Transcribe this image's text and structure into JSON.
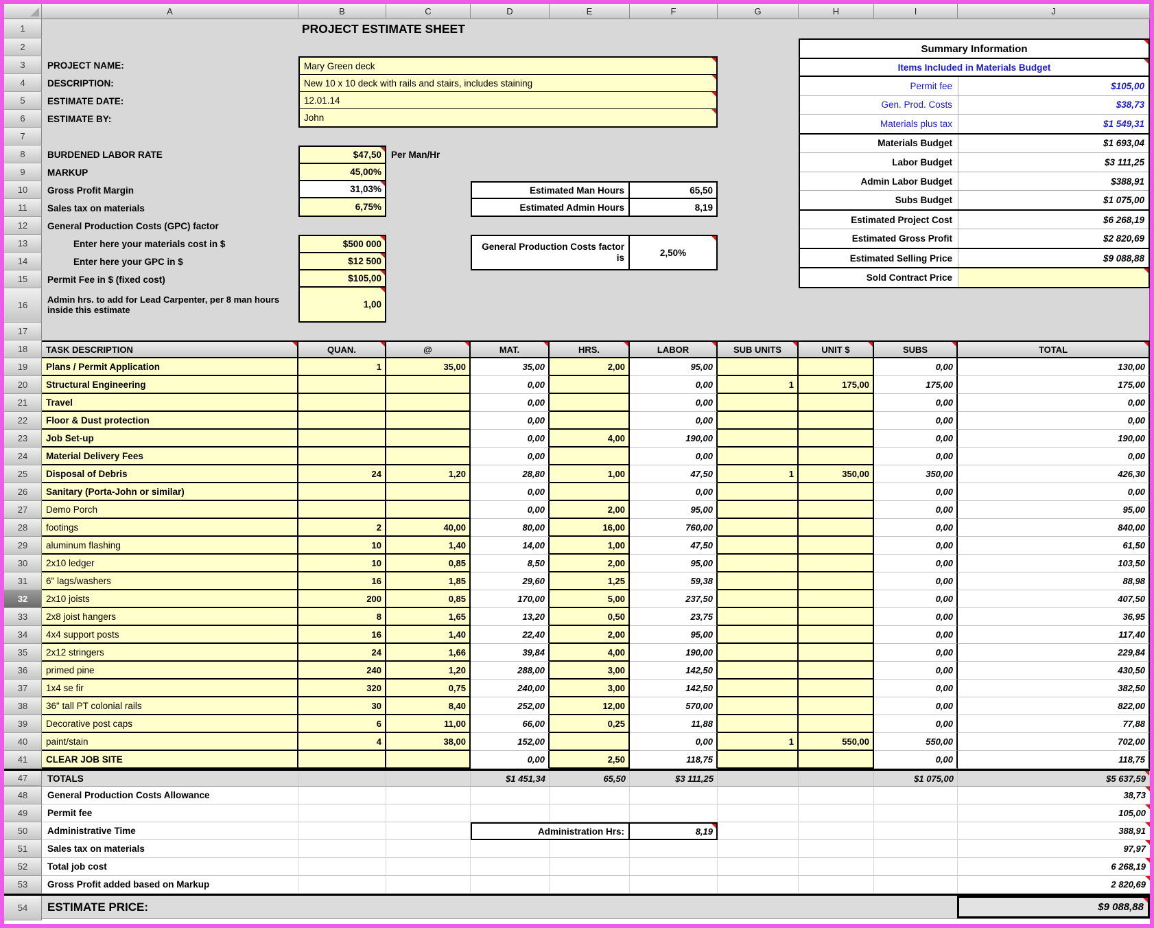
{
  "sheet": {
    "title": "PROJECT ESTIMATE SHEET"
  },
  "grid": {
    "column_letters": [
      "A",
      "B",
      "C",
      "D",
      "E",
      "F",
      "G",
      "H",
      "I",
      "J"
    ],
    "selected_row": "32",
    "top_rows": [
      {
        "num": "1"
      },
      {
        "num": "2"
      },
      {
        "num": "3",
        "label": "PROJECT NAME:"
      },
      {
        "num": "4",
        "label": "DESCRIPTION:"
      },
      {
        "num": "5",
        "label": "ESTIMATE DATE:"
      },
      {
        "num": "6",
        "label": "ESTIMATE BY:"
      },
      {
        "num": "7"
      },
      {
        "num": "8",
        "label": "BURDENED LABOR RATE"
      },
      {
        "num": "9",
        "label": "MARKUP"
      },
      {
        "num": "10",
        "label": "Gross Profit Margin"
      },
      {
        "num": "11",
        "label": "Sales tax on materials"
      },
      {
        "num": "12",
        "label": "General Production Costs (GPC) factor"
      },
      {
        "num": "13",
        "label": "Enter here your materials cost in $",
        "indent": true
      },
      {
        "num": "14",
        "label": "Enter here your GPC in $",
        "indent": true
      },
      {
        "num": "15",
        "label": "Permit Fee in $ (fixed cost)"
      },
      {
        "num": "16",
        "label": "Admin hrs. to add for Lead Carpenter, per 8 man hours inside this estimate",
        "tall": true
      },
      {
        "num": "17"
      }
    ]
  },
  "form_values": [
    "Mary Green deck",
    "New 10 x 10 deck with rails and stairs, includes staining",
    "12.01.14",
    "John"
  ],
  "rates": {
    "per_man_hr": "Per Man/Hr"
  },
  "rate_boxes": {
    "group1": [
      {
        "value": "$47,50",
        "corner": true
      },
      {
        "value": "45,00%"
      },
      {
        "value": "31,03%",
        "white": true,
        "corner": true
      },
      {
        "value": "6,75%"
      }
    ],
    "group2": [
      {
        "value": "$500 000",
        "corner": true
      },
      {
        "value": "$12 500",
        "corner": true
      },
      {
        "value": "$105,00",
        "corner": true
      },
      {
        "value": "1,00",
        "tall": true,
        "corner": true
      }
    ]
  },
  "hours_box": {
    "rows": [
      {
        "label": "Estimated Man Hours",
        "value": "65,50"
      },
      {
        "label": "Estimated Admin Hours",
        "value": "8,19"
      }
    ]
  },
  "gpc_box": {
    "label": "General Production Costs factor is",
    "value": "2,50%"
  },
  "summary": {
    "title": "Summary Information",
    "subtitle": "Items Included in Materials Budget",
    "rows": [
      {
        "label": "Permit fee",
        "value": "$105,00",
        "blue": true
      },
      {
        "label": "Gen. Prod. Costs",
        "value": "$38,73",
        "blue": true
      },
      {
        "label": "Materials plus tax",
        "value": "$1 549,31",
        "blue": true,
        "group_end": true
      },
      {
        "label": "Materials Budget",
        "value": "$1 693,04"
      },
      {
        "label": "Labor Budget",
        "value": "$3 111,25"
      },
      {
        "label": "Admin Labor Budget",
        "value": "$388,91"
      },
      {
        "label": "Subs Budget",
        "value": "$1 075,00",
        "group_end": true
      },
      {
        "label": "Estimated Project Cost",
        "value": "$6 268,19"
      },
      {
        "label": "Estimated Gross Profit",
        "value": "$2 820,69",
        "group_end": true
      },
      {
        "label": "Estimated Selling Price",
        "value": "$9 088,88",
        "group_end": true
      },
      {
        "label": "Sold Contract Price",
        "value": "",
        "yellow_value": true,
        "corner": true
      }
    ]
  },
  "task_table": {
    "header_row_num": "18",
    "headers": [
      "TASK DESCRIPTION",
      "QUAN.",
      "@",
      "MAT.",
      "HRS.",
      "LABOR",
      "SUB UNITS",
      "UNIT $",
      "SUBS",
      "TOTAL"
    ],
    "rows": [
      {
        "num": "19",
        "desc": "Plans / Permit Application",
        "bold": true,
        "quan": "1",
        "at": "35,00",
        "mat": "35,00",
        "hrs": "2,00",
        "labor": "95,00",
        "sub_units": "",
        "unit_price": "",
        "subs": "0,00",
        "total": "130,00"
      },
      {
        "num": "20",
        "desc": "Structural Engineering",
        "bold": true,
        "quan": "",
        "at": "",
        "mat": "0,00",
        "hrs": "",
        "labor": "0,00",
        "sub_units": "1",
        "unit_price": "175,00",
        "subs": "175,00",
        "total": "175,00"
      },
      {
        "num": "21",
        "desc": "Travel",
        "bold": true,
        "quan": "",
        "at": "",
        "mat": "0,00",
        "hrs": "",
        "labor": "0,00",
        "sub_units": "",
        "unit_price": "",
        "subs": "0,00",
        "total": "0,00"
      },
      {
        "num": "22",
        "desc": "Floor & Dust protection",
        "bold": true,
        "quan": "",
        "at": "",
        "mat": "0,00",
        "hrs": "",
        "labor": "0,00",
        "sub_units": "",
        "unit_price": "",
        "subs": "0,00",
        "total": "0,00"
      },
      {
        "num": "23",
        "desc": "Job Set-up",
        "bold": true,
        "quan": "",
        "at": "",
        "mat": "0,00",
        "hrs": "4,00",
        "labor": "190,00",
        "sub_units": "",
        "unit_price": "",
        "subs": "0,00",
        "total": "190,00"
      },
      {
        "num": "24",
        "desc": "Material Delivery Fees",
        "bold": true,
        "quan": "",
        "at": "",
        "mat": "0,00",
        "hrs": "",
        "labor": "0,00",
        "sub_units": "",
        "unit_price": "",
        "subs": "0,00",
        "total": "0,00"
      },
      {
        "num": "25",
        "desc": "Disposal of Debris",
        "bold": true,
        "quan": "24",
        "at": "1,20",
        "mat": "28,80",
        "hrs": "1,00",
        "labor": "47,50",
        "sub_units": "1",
        "unit_price": "350,00",
        "subs": "350,00",
        "total": "426,30"
      },
      {
        "num": "26",
        "desc": "Sanitary (Porta-John or similar)",
        "bold": true,
        "quan": "",
        "at": "",
        "mat": "0,00",
        "hrs": "",
        "labor": "0,00",
        "sub_units": "",
        "unit_price": "",
        "subs": "0,00",
        "total": "0,00"
      },
      {
        "num": "27",
        "desc": "Demo Porch",
        "bold": false,
        "quan": "",
        "at": "",
        "mat": "0,00",
        "hrs": "2,00",
        "labor": "95,00",
        "sub_units": "",
        "unit_price": "",
        "subs": "0,00",
        "total": "95,00"
      },
      {
        "num": "28",
        "desc": "footings",
        "bold": false,
        "quan": "2",
        "at": "40,00",
        "mat": "80,00",
        "hrs": "16,00",
        "labor": "760,00",
        "sub_units": "",
        "unit_price": "",
        "subs": "0,00",
        "total": "840,00"
      },
      {
        "num": "29",
        "desc": "aluminum flashing",
        "bold": false,
        "quan": "10",
        "at": "1,40",
        "mat": "14,00",
        "hrs": "1,00",
        "labor": "47,50",
        "sub_units": "",
        "unit_price": "",
        "subs": "0,00",
        "total": "61,50"
      },
      {
        "num": "30",
        "desc": "2x10 ledger",
        "bold": false,
        "quan": "10",
        "at": "0,85",
        "mat": "8,50",
        "hrs": "2,00",
        "labor": "95,00",
        "sub_units": "",
        "unit_price": "",
        "subs": "0,00",
        "total": "103,50"
      },
      {
        "num": "31",
        "desc": "6\" lags/washers",
        "bold": false,
        "quan": "16",
        "at": "1,85",
        "mat": "29,60",
        "hrs": "1,25",
        "labor": "59,38",
        "sub_units": "",
        "unit_price": "",
        "subs": "0,00",
        "total": "88,98"
      },
      {
        "num": "32",
        "desc": "2x10 joists",
        "bold": false,
        "quan": "200",
        "at": "0,85",
        "mat": "170,00",
        "hrs": "5,00",
        "labor": "237,50",
        "sub_units": "",
        "unit_price": "",
        "subs": "0,00",
        "total": "407,50"
      },
      {
        "num": "33",
        "desc": "2x8 joist hangers",
        "bold": false,
        "quan": "8",
        "at": "1,65",
        "mat": "13,20",
        "hrs": "0,50",
        "labor": "23,75",
        "sub_units": "",
        "unit_price": "",
        "subs": "0,00",
        "total": "36,95"
      },
      {
        "num": "34",
        "desc": "4x4 support posts",
        "bold": false,
        "quan": "16",
        "at": "1,40",
        "mat": "22,40",
        "hrs": "2,00",
        "labor": "95,00",
        "sub_units": "",
        "unit_price": "",
        "subs": "0,00",
        "total": "117,40"
      },
      {
        "num": "35",
        "desc": "2x12 stringers",
        "bold": false,
        "quan": "24",
        "at": "1,66",
        "mat": "39,84",
        "hrs": "4,00",
        "labor": "190,00",
        "sub_units": "",
        "unit_price": "",
        "subs": "0,00",
        "total": "229,84"
      },
      {
        "num": "36",
        "desc": "primed pine",
        "bold": false,
        "quan": "240",
        "at": "1,20",
        "mat": "288,00",
        "hrs": "3,00",
        "labor": "142,50",
        "sub_units": "",
        "unit_price": "",
        "subs": "0,00",
        "total": "430,50"
      },
      {
        "num": "37",
        "desc": "1x4 se fir",
        "bold": false,
        "quan": "320",
        "at": "0,75",
        "mat": "240,00",
        "hrs": "3,00",
        "labor": "142,50",
        "sub_units": "",
        "unit_price": "",
        "subs": "0,00",
        "total": "382,50"
      },
      {
        "num": "38",
        "desc": "36\" tall PT colonial rails",
        "bold": false,
        "quan": "30",
        "at": "8,40",
        "mat": "252,00",
        "hrs": "12,00",
        "labor": "570,00",
        "sub_units": "",
        "unit_price": "",
        "subs": "0,00",
        "total": "822,00"
      },
      {
        "num": "39",
        "desc": "Decorative post caps",
        "bold": false,
        "quan": "6",
        "at": "11,00",
        "mat": "66,00",
        "hrs": "0,25",
        "labor": "11,88",
        "sub_units": "",
        "unit_price": "",
        "subs": "0,00",
        "total": "77,88"
      },
      {
        "num": "40",
        "desc": "paint/stain",
        "bold": false,
        "quan": "4",
        "at": "38,00",
        "mat": "152,00",
        "hrs": "",
        "labor": "0,00",
        "sub_units": "1",
        "unit_price": "550,00",
        "subs": "550,00",
        "total": "702,00"
      },
      {
        "num": "41",
        "desc": "CLEAR JOB SITE",
        "bold": true,
        "quan": "",
        "at": "",
        "mat": "0,00",
        "hrs": "2,50",
        "labor": "118,75",
        "sub_units": "",
        "unit_price": "",
        "subs": "0,00",
        "total": "118,75"
      }
    ]
  },
  "totals_row": {
    "num": "47",
    "label": "TOTALS",
    "mat": "$1 451,34",
    "hrs": "65,50",
    "labor": "$3 111,25",
    "subs": "$1 075,00",
    "total": "$5 637,59"
  },
  "bottom_rows": [
    {
      "num": "48",
      "label": "General Production Costs Allowance",
      "total": "38,73"
    },
    {
      "num": "49",
      "label": "Permit fee",
      "total": "105,00"
    },
    {
      "num": "50",
      "label": "Administrative Time",
      "total": "388,91",
      "admin_label": "Administration Hrs:",
      "admin_value": "8,19"
    },
    {
      "num": "51",
      "label": "Sales tax on materials",
      "total": "97,97"
    },
    {
      "num": "52",
      "label": "Total job cost",
      "total": "6 268,19"
    },
    {
      "num": "53",
      "label": "Gross Profit added based on Markup",
      "total": "2 820,69"
    }
  ],
  "estimate_row": {
    "num": "54",
    "label": "ESTIMATE PRICE:",
    "value": "$9 088,88"
  },
  "colors": {
    "input_cell": "#ffffcc",
    "frame": "#ee5be8",
    "summary_blue": "#1a1acd",
    "comment_corner": "#cf1f1f",
    "header_gray": "#d8d8d8"
  }
}
